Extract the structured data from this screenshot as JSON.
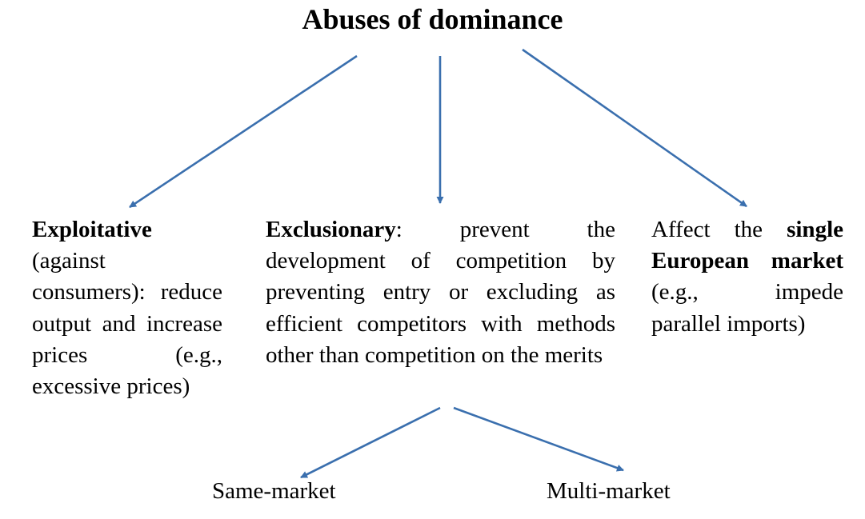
{
  "title": "Abuses of dominance",
  "colors": {
    "arrow": "#3a6fae",
    "text": "#000000",
    "background": "#ffffff"
  },
  "branches": {
    "exploitative": {
      "heading": "Exploitative",
      "body": "(against consumers): reduce output and increase prices (e.g., excessive prices)"
    },
    "exclusionary": {
      "heading": "Exclusionary",
      "body": ": prevent the development of competition by preventing entry or excluding as efficient competitors with methods other than competition on the merits"
    },
    "single_market": {
      "lead": "Affect the ",
      "heading": "single European market",
      "body": " (e.g., impede parallel imports)"
    }
  },
  "sub_branches": {
    "same_market": "Same-market",
    "multi_market": "Multi-market"
  }
}
